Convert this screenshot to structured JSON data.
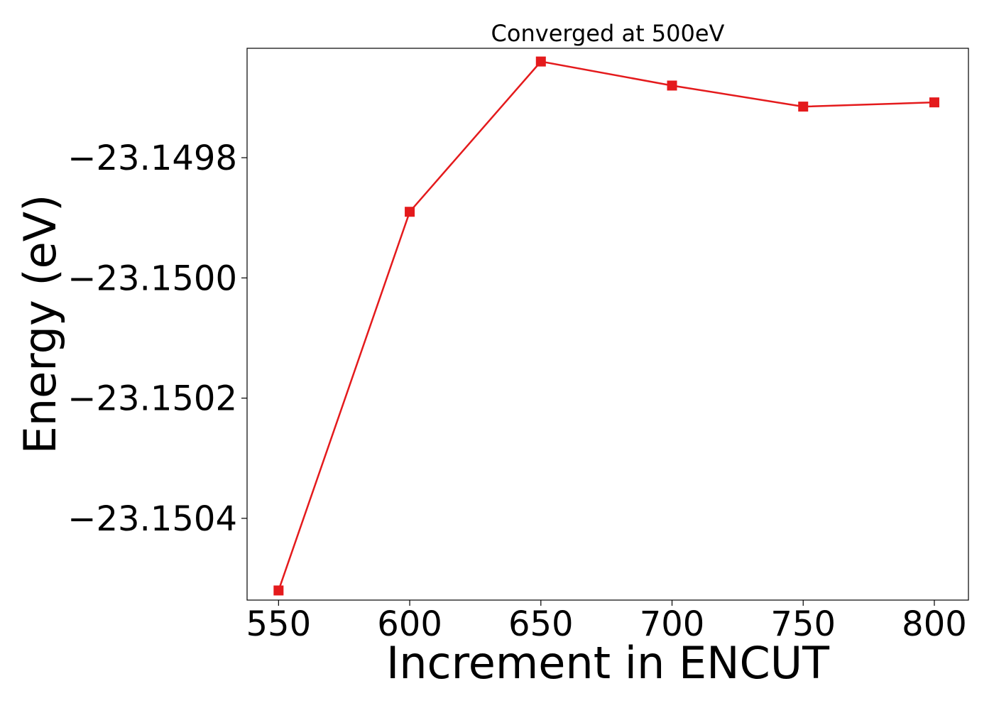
{
  "chart_data": {
    "type": "line",
    "title": "Converged at 500eV",
    "xlabel": "Increment in ENCUT",
    "ylabel": "Energy (eV)",
    "x": [
      550,
      600,
      650,
      700,
      750,
      800
    ],
    "series": [
      {
        "values": [
          -23.15052,
          -23.14989,
          -23.14964,
          -23.14968,
          -23.149715,
          -23.149708
        ],
        "color": "#e41a1c",
        "marker": "square"
      }
    ],
    "xlim": [
      538,
      813
    ],
    "ylim": [
      -23.150536,
      -23.149618
    ],
    "xticks": [
      550,
      600,
      650,
      700,
      750,
      800
    ],
    "xtick_labels": [
      "550",
      "600",
      "650",
      "700",
      "750",
      "800"
    ],
    "yticks": [
      -23.1498,
      -23.15,
      -23.1502,
      -23.1504
    ],
    "ytick_labels": [
      "−23.1498",
      "−23.1500",
      "−23.1502",
      "−23.1504"
    ],
    "grid": false,
    "legend": "none"
  }
}
